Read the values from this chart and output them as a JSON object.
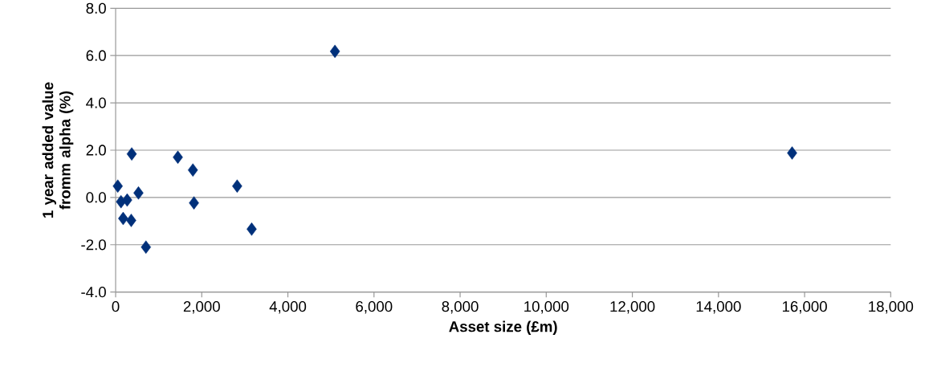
{
  "chart_data": {
    "type": "scatter",
    "xlabel": "Asset size (£m)",
    "ylabel": "1 year added value fromm alpha (%)",
    "x": [
      374,
      1445,
      1794,
      50,
      2822,
      530,
      125,
      268,
      1819,
      175,
      362,
      3159,
      704,
      5093,
      15710
    ],
    "values": [
      1.84,
      1.7,
      1.16,
      0.48,
      0.48,
      0.19,
      -0.18,
      -0.11,
      -0.23,
      -0.89,
      -0.97,
      -1.34,
      -2.1,
      6.18,
      1.88
    ],
    "color": "#00307a",
    "marker": "diamond",
    "grid": "y",
    "xlim": [
      0,
      18000
    ],
    "ylim": [
      -4,
      8
    ],
    "xticks": [
      {
        "value": 0,
        "label": "0"
      },
      {
        "value": 2000,
        "label": "2,000"
      },
      {
        "value": 4000,
        "label": "4,000"
      },
      {
        "value": 6000,
        "label": "6,000"
      },
      {
        "value": 8000,
        "label": "8,000"
      },
      {
        "value": 10000,
        "label": "10,000"
      },
      {
        "value": 12000,
        "label": "12,000"
      },
      {
        "value": 14000,
        "label": "14,000"
      },
      {
        "value": 16000,
        "label": "16,000"
      },
      {
        "value": 18000,
        "label": "18,000"
      }
    ],
    "yticks": [
      {
        "value": -4,
        "label": "-4.0"
      },
      {
        "value": -2,
        "label": "-2.0"
      },
      {
        "value": 0,
        "label": "0.0"
      },
      {
        "value": 2,
        "label": "2.0"
      },
      {
        "value": 4,
        "label": "4.0"
      },
      {
        "value": 6,
        "label": "6.0"
      },
      {
        "value": 8,
        "label": "8.0"
      }
    ]
  }
}
